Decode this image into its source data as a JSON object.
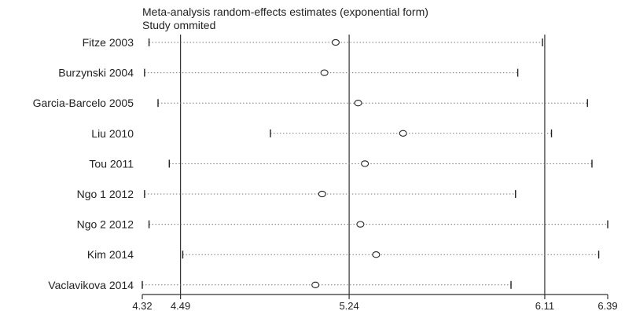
{
  "chart_data": {
    "type": "forest",
    "title": "Meta-analysis random-effects estimates (exponential form)",
    "subtitle": "Study ommited",
    "x_axis": {
      "range": [
        4.32,
        6.39
      ],
      "ticks": [
        "4.32",
        "4.49",
        "5.24",
        "6.11",
        "6.39"
      ]
    },
    "reference_lines": [
      4.49,
      5.24,
      6.11
    ],
    "studies": [
      {
        "name": "Fitze 2003",
        "estimate": 5.18,
        "lower": 4.35,
        "upper": 6.1
      },
      {
        "name": "Burzynski 2004",
        "estimate": 5.13,
        "lower": 4.33,
        "upper": 5.99
      },
      {
        "name": "Garcia-Barcelo 2005",
        "estimate": 5.28,
        "lower": 4.39,
        "upper": 6.3
      },
      {
        "name": "Liu 2010",
        "estimate": 5.48,
        "lower": 4.89,
        "upper": 6.14
      },
      {
        "name": "Tou 2011",
        "estimate": 5.31,
        "lower": 4.44,
        "upper": 6.32
      },
      {
        "name": "Ngo 1 2012",
        "estimate": 5.12,
        "lower": 4.33,
        "upper": 5.98
      },
      {
        "name": "Ngo 2 2012",
        "estimate": 5.29,
        "lower": 4.35,
        "upper": 6.39
      },
      {
        "name": "Kim 2014",
        "estimate": 5.36,
        "lower": 4.5,
        "upper": 6.35
      },
      {
        "name": "Vaclavikova 2014",
        "estimate": 5.09,
        "lower": 4.32,
        "upper": 5.96
      }
    ]
  }
}
